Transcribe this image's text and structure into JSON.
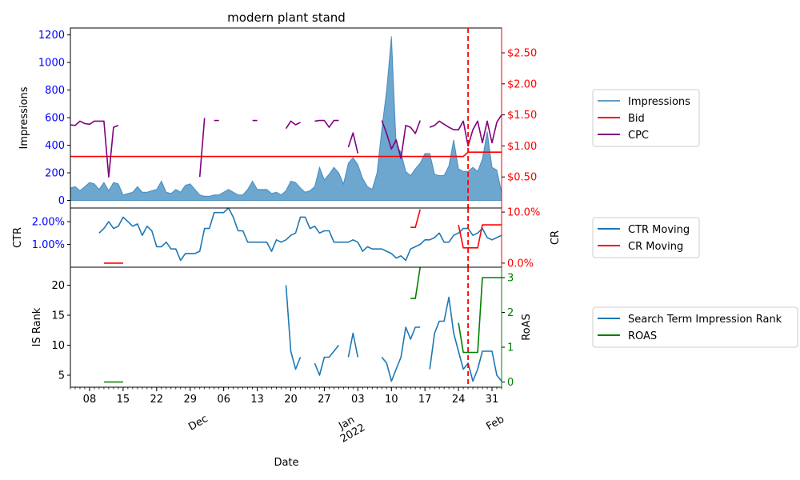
{
  "title": "modern plant stand",
  "xlabel": "Date",
  "colors": {
    "impressions": "#1f77b4",
    "bid": "#ff0000",
    "cpc": "#800080",
    "ctr": "#1f77b4",
    "cr": "#ff0000",
    "isrank": "#1f77b4",
    "roas": "#008000",
    "vline": "#ff0000",
    "left_tick": "#0000ff"
  },
  "x_ticks": {
    "day_labels": [
      "08",
      "15",
      "22",
      "29",
      "06",
      "13",
      "20",
      "27",
      "03",
      "10",
      "17",
      "24",
      "31"
    ],
    "month_labels": [
      "Dec",
      "Jan\n2022",
      "Feb"
    ]
  },
  "legends": {
    "top": [
      "Impressions",
      "Bid",
      "CPC"
    ],
    "middle": [
      "CTR Moving",
      "CR Moving"
    ],
    "bottom": [
      "Search Term Impression Rank",
      "ROAS"
    ]
  },
  "chart_data": [
    {
      "type": "area",
      "panel": "top",
      "title": "modern plant stand",
      "ylabel": "Impressions",
      "ylabel_right": "",
      "ylim": [
        -55,
        1250
      ],
      "yticks": [
        0,
        200,
        400,
        600,
        800,
        1000,
        1200
      ],
      "ylim_right": [
        0.0,
        2.9
      ],
      "yticks_right": [
        0.5,
        1.0,
        1.5,
        2.0,
        2.5
      ],
      "yticks_right_labels": [
        "$0.50",
        "$1.00",
        "$1.50",
        "$2.00",
        "$2.50"
      ],
      "x": [
        "2021-11-04",
        "2021-11-05",
        "2021-11-06",
        "2021-11-07",
        "2021-11-08",
        "2021-11-09",
        "2021-11-10",
        "2021-11-11",
        "2021-11-12",
        "2021-11-13",
        "2021-11-14",
        "2021-11-15",
        "2021-11-16",
        "2021-11-17",
        "2021-11-18",
        "2021-11-19",
        "2021-11-20",
        "2021-11-21",
        "2021-11-22",
        "2021-11-23",
        "2021-11-24",
        "2021-11-25",
        "2021-11-26",
        "2021-11-27",
        "2021-11-28",
        "2021-11-29",
        "2021-11-30",
        "2021-12-01",
        "2021-12-02",
        "2021-12-03",
        "2021-12-04",
        "2021-12-05",
        "2021-12-06",
        "2021-12-07",
        "2021-12-08",
        "2021-12-09",
        "2021-12-10",
        "2021-12-11",
        "2021-12-12",
        "2021-12-13",
        "2021-12-14",
        "2021-12-15",
        "2021-12-16",
        "2021-12-17",
        "2021-12-18",
        "2021-12-19",
        "2021-12-20",
        "2021-12-21",
        "2021-12-22",
        "2021-12-23",
        "2021-12-24",
        "2021-12-25",
        "2021-12-26",
        "2021-12-27",
        "2021-12-28",
        "2021-12-29",
        "2021-12-30",
        "2021-12-31",
        "2022-01-01",
        "2022-01-02",
        "2022-01-03",
        "2022-01-04",
        "2022-01-05",
        "2022-01-06",
        "2022-01-07",
        "2022-01-08",
        "2022-01-09",
        "2022-01-10",
        "2022-01-11",
        "2022-01-12",
        "2022-01-13",
        "2022-01-14",
        "2022-01-15",
        "2022-01-16",
        "2022-01-17",
        "2022-01-18",
        "2022-01-19",
        "2022-01-20",
        "2022-01-21",
        "2022-01-22",
        "2022-01-23",
        "2022-01-24",
        "2022-01-25",
        "2022-01-26",
        "2022-01-27",
        "2022-01-28",
        "2022-01-29",
        "2022-01-30",
        "2022-01-31",
        "2022-02-01",
        "2022-02-02"
      ],
      "series": [
        {
          "name": "Impressions",
          "axis": "left",
          "values": [
            90,
            100,
            70,
            100,
            130,
            120,
            80,
            130,
            70,
            130,
            120,
            40,
            50,
            60,
            100,
            60,
            60,
            70,
            80,
            140,
            60,
            50,
            80,
            60,
            110,
            120,
            80,
            40,
            30,
            30,
            40,
            40,
            60,
            80,
            60,
            40,
            40,
            80,
            140,
            80,
            80,
            80,
            50,
            60,
            40,
            70,
            140,
            130,
            90,
            60,
            70,
            100,
            240,
            150,
            190,
            240,
            200,
            120,
            270,
            310,
            260,
            160,
            100,
            80,
            200,
            520,
            800,
            1190,
            400,
            350,
            210,
            180,
            230,
            270,
            340,
            340,
            190,
            180,
            180,
            250,
            440,
            230,
            210,
            210,
            240,
            210,
            300,
            500,
            240,
            220,
            60
          ]
        },
        {
          "name": "Bid",
          "axis": "right",
          "values": [
            0.83,
            0.83,
            0.83,
            0.83,
            0.83,
            0.83,
            0.83,
            0.83,
            0.83,
            0.83,
            0.83,
            0.83,
            0.83,
            0.83,
            0.83,
            0.83,
            0.83,
            0.83,
            0.83,
            0.83,
            0.83,
            0.83,
            0.83,
            0.83,
            0.83,
            0.83,
            0.83,
            0.83,
            0.83,
            0.83,
            0.83,
            0.83,
            0.83,
            0.83,
            0.83,
            0.83,
            0.83,
            0.83,
            0.83,
            0.83,
            0.83,
            0.83,
            0.83,
            0.83,
            0.83,
            0.83,
            0.83,
            0.83,
            0.83,
            0.83,
            0.83,
            0.83,
            0.83,
            0.83,
            0.83,
            0.83,
            0.83,
            0.83,
            0.83,
            0.83,
            0.83,
            0.83,
            0.83,
            0.83,
            0.83,
            0.83,
            0.83,
            0.83,
            0.83,
            0.83,
            0.83,
            0.83,
            0.83,
            0.83,
            0.83,
            0.83,
            0.83,
            0.83,
            0.83,
            0.83,
            0.83,
            0.83,
            0.83,
            0.9,
            0.9,
            0.9,
            0.9,
            0.9,
            0.9,
            0.9,
            0.9
          ]
        },
        {
          "name": "CPC",
          "axis": "right",
          "values": [
            1.34,
            1.33,
            1.4,
            1.36,
            1.35,
            1.4,
            1.4,
            1.4,
            0.5,
            1.3,
            1.33,
            null,
            null,
            null,
            null,
            null,
            null,
            null,
            null,
            null,
            null,
            null,
            null,
            null,
            null,
            null,
            null,
            0.5,
            1.45,
            null,
            1.41,
            1.41,
            null,
            null,
            null,
            null,
            null,
            null,
            1.41,
            1.41,
            null,
            null,
            null,
            null,
            null,
            1.28,
            1.4,
            1.34,
            1.38,
            null,
            null,
            1.4,
            1.41,
            1.41,
            1.3,
            1.41,
            1.41,
            null,
            0.98,
            1.21,
            0.88,
            null,
            null,
            null,
            null,
            1.41,
            1.2,
            0.95,
            1.1,
            0.8,
            1.33,
            1.3,
            1.2,
            1.41,
            null,
            1.3,
            1.33,
            1.4,
            1.35,
            1.3,
            1.26,
            1.26,
            1.4,
            1.0,
            1.26,
            1.4,
            1.05,
            1.4,
            1.05,
            1.38,
            1.5
          ]
        }
      ]
    },
    {
      "type": "line",
      "panel": "middle",
      "ylabel": "CTR",
      "ylabel_right": "CR",
      "ylim": [
        0.0,
        0.026
      ],
      "yticks": [
        0.01,
        0.02
      ],
      "yticks_labels": [
        "1.00%",
        "2.00%"
      ],
      "ylim_right": [
        -0.008,
        0.108
      ],
      "yticks_right": [
        0.0,
        0.1
      ],
      "yticks_right_labels": [
        "0.0%",
        "10.0%"
      ],
      "series": [
        {
          "name": "CTR Moving",
          "axis": "left",
          "values": [
            null,
            null,
            null,
            null,
            null,
            null,
            0.015,
            0.017,
            0.02,
            0.017,
            0.018,
            0.022,
            0.02,
            0.018,
            0.019,
            0.014,
            0.018,
            0.016,
            0.009,
            0.009,
            0.011,
            0.008,
            0.008,
            0.003,
            0.006,
            0.006,
            0.006,
            0.007,
            0.017,
            0.017,
            0.024,
            0.024,
            0.024,
            0.026,
            0.022,
            0.016,
            0.016,
            0.011,
            0.011,
            0.011,
            0.011,
            0.011,
            0.007,
            0.012,
            0.011,
            0.012,
            0.014,
            0.015,
            0.022,
            0.022,
            0.017,
            0.018,
            0.015,
            0.016,
            0.016,
            0.011,
            0.011,
            0.011,
            0.011,
            0.012,
            0.011,
            0.007,
            0.009,
            0.008,
            0.008,
            0.008,
            0.007,
            0.006,
            0.004,
            0.005,
            0.003,
            0.008,
            0.009,
            0.01,
            0.012,
            0.012,
            0.013,
            0.015,
            0.011,
            0.011,
            0.014,
            0.015,
            0.017,
            0.017,
            0.014,
            0.015,
            0.017,
            0.013,
            0.012,
            0.013,
            0.014
          ]
        },
        {
          "name": "CR Moving",
          "axis": "right",
          "values": [
            null,
            null,
            null,
            null,
            null,
            null,
            null,
            0.0,
            0.0,
            0.0,
            0.0,
            0.0,
            null,
            null,
            null,
            null,
            null,
            null,
            null,
            null,
            null,
            null,
            null,
            null,
            null,
            null,
            null,
            null,
            null,
            null,
            null,
            null,
            null,
            null,
            null,
            null,
            null,
            null,
            null,
            null,
            null,
            null,
            null,
            null,
            null,
            null,
            null,
            null,
            null,
            null,
            null,
            null,
            null,
            null,
            null,
            null,
            null,
            null,
            null,
            null,
            null,
            null,
            null,
            null,
            null,
            null,
            null,
            null,
            null,
            null,
            null,
            0.07,
            0.07,
            0.105,
            null,
            null,
            null,
            null,
            null,
            null,
            null,
            0.075,
            0.03,
            0.03,
            0.03,
            0.03,
            0.075,
            0.075,
            0.075,
            0.075,
            0.075
          ]
        }
      ]
    },
    {
      "type": "line",
      "panel": "bottom",
      "ylabel": "IS Rank",
      "ylabel_right": "RoAS",
      "ylim": [
        3,
        23
      ],
      "yticks": [
        5,
        10,
        15,
        20
      ],
      "ylim_right": [
        -0.15,
        3.3
      ],
      "yticks_right": [
        0,
        1,
        2,
        3
      ],
      "series": [
        {
          "name": "Search Term Impression Rank",
          "axis": "left",
          "values": [
            null,
            null,
            null,
            null,
            null,
            null,
            null,
            null,
            null,
            null,
            null,
            null,
            null,
            null,
            null,
            null,
            null,
            null,
            null,
            null,
            null,
            null,
            null,
            null,
            null,
            null,
            null,
            null,
            null,
            null,
            null,
            null,
            null,
            null,
            null,
            null,
            null,
            null,
            null,
            null,
            null,
            null,
            null,
            null,
            null,
            20,
            9,
            6,
            8,
            null,
            null,
            7,
            5,
            8,
            8,
            9,
            10,
            null,
            8,
            12,
            8,
            null,
            null,
            null,
            null,
            8,
            7,
            4,
            6,
            8,
            13,
            11,
            13,
            13,
            null,
            6,
            12,
            14,
            14,
            18,
            12,
            9,
            6,
            7,
            4,
            6,
            9,
            9,
            9,
            5,
            4
          ]
        },
        {
          "name": "ROAS",
          "axis": "right",
          "values": [
            null,
            null,
            null,
            null,
            null,
            null,
            null,
            0.0,
            0.0,
            0.0,
            0.0,
            0.0,
            null,
            null,
            null,
            null,
            null,
            null,
            null,
            null,
            null,
            null,
            null,
            null,
            null,
            null,
            null,
            null,
            null,
            null,
            null,
            null,
            null,
            null,
            null,
            null,
            null,
            null,
            null,
            null,
            null,
            null,
            null,
            null,
            null,
            null,
            null,
            null,
            null,
            null,
            null,
            null,
            null,
            null,
            null,
            null,
            null,
            null,
            null,
            null,
            null,
            null,
            null,
            null,
            null,
            null,
            null,
            null,
            null,
            null,
            null,
            2.4,
            2.4,
            3.3,
            null,
            null,
            null,
            null,
            null,
            null,
            null,
            1.7,
            0.85,
            0.85,
            0.85,
            0.85,
            3.0,
            3.0,
            3.0,
            3.0,
            3.0
          ]
        }
      ]
    }
  ]
}
